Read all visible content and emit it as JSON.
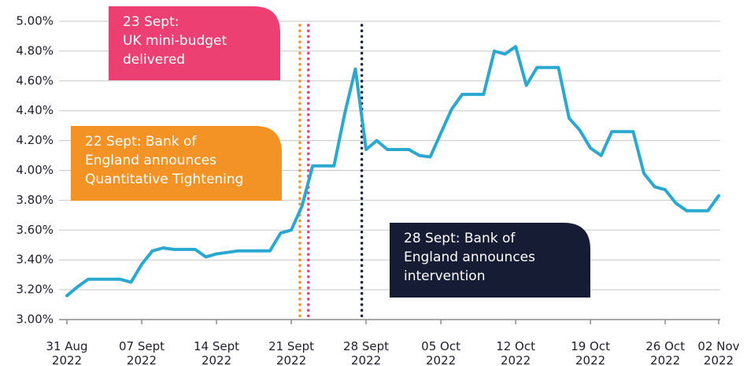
{
  "chart_data": {
    "type": "line",
    "categories": [
      "31 Aug 2022",
      null,
      null,
      null,
      null,
      null,
      null,
      "07 Sept 2022",
      null,
      null,
      null,
      null,
      null,
      null,
      "14 Sept 2022",
      null,
      null,
      null,
      null,
      null,
      null,
      "21 Sept 2022",
      null,
      null,
      null,
      null,
      null,
      null,
      "28 Sept 2022",
      null,
      null,
      null,
      null,
      null,
      null,
      "05 Oct 2022",
      null,
      null,
      null,
      null,
      null,
      null,
      "12 Oct 2022",
      null,
      null,
      null,
      null,
      null,
      null,
      "19 Oct 2022",
      null,
      null,
      null,
      null,
      null,
      null,
      "26 Oct 2022",
      null,
      null,
      null,
      null,
      "02 Nov 2022"
    ],
    "series": [
      {
        "color": "#2ba8d0",
        "values": [
          3.16,
          3.22,
          3.27,
          3.27,
          3.27,
          3.27,
          3.25,
          3.37,
          3.46,
          3.48,
          3.47,
          3.47,
          3.47,
          3.42,
          3.44,
          3.45,
          3.46,
          3.46,
          3.46,
          3.46,
          3.58,
          3.6,
          3.76,
          4.03,
          4.03,
          4.03,
          4.38,
          4.68,
          4.14,
          4.2,
          4.14,
          4.14,
          4.14,
          4.1,
          4.09,
          4.25,
          4.41,
          4.51,
          4.51,
          4.51,
          4.8,
          4.78,
          4.83,
          4.57,
          4.69,
          4.69,
          4.69,
          4.35,
          4.27,
          4.15,
          4.1,
          4.26,
          4.26,
          4.26,
          3.98,
          3.89,
          3.87,
          3.78,
          3.73,
          3.73,
          3.73,
          3.83
        ]
      }
    ],
    "ylim": [
      3.0,
      5.0
    ],
    "yticks": [
      {
        "value": 3.0,
        "label": "3.00%"
      },
      {
        "value": 3.2,
        "label": "3.20%"
      },
      {
        "value": 3.4,
        "label": "3.40%"
      },
      {
        "value": 3.6,
        "label": "3.60%"
      },
      {
        "value": 3.8,
        "label": "3.80%"
      },
      {
        "value": 4.0,
        "label": "4.00%"
      },
      {
        "value": 4.2,
        "label": "4.20%"
      },
      {
        "value": 4.4,
        "label": "4.40%"
      },
      {
        "value": 4.6,
        "label": "4.60%"
      },
      {
        "value": 4.8,
        "label": "4.80%"
      },
      {
        "value": 5.0,
        "label": "5.00%"
      }
    ],
    "grid": true,
    "annotations": [
      {
        "text": [
          "23 Sept:",
          "UK mini-budget",
          "delivered"
        ],
        "color": "#ec3f72"
      },
      {
        "text": [
          "22 Sept: Bank of",
          "England announces",
          "Quantitative Tightening"
        ],
        "color": "#f39325"
      },
      {
        "text": [
          "28 Sept: Bank of",
          "England announces",
          "intervention"
        ],
        "color": "#161c33"
      }
    ]
  }
}
